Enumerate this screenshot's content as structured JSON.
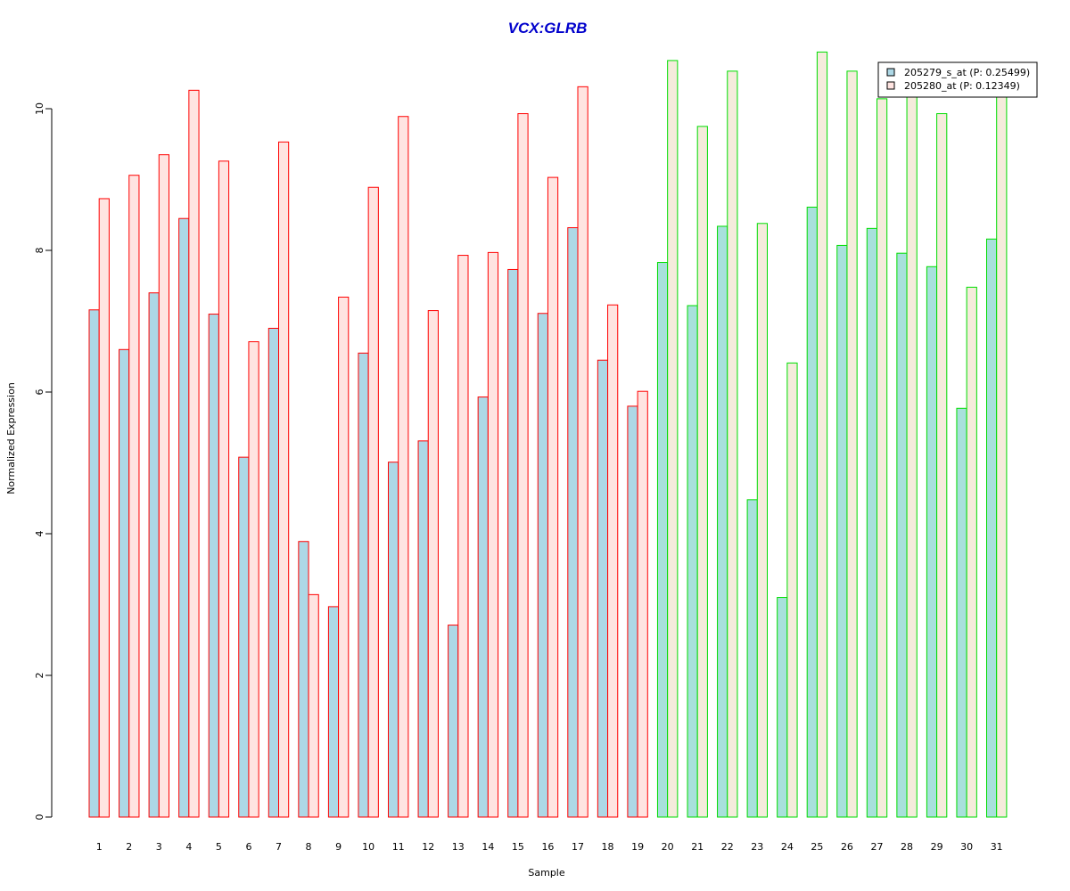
{
  "chart_data": {
    "type": "bar",
    "title": "VCX:GLRB",
    "title_color": "#0000CC",
    "xlabel": "Sample",
    "ylabel": "Normalized Expression",
    "ylim": [
      0,
      10.8
    ],
    "yticks": [
      0,
      2,
      4,
      6,
      8,
      10
    ],
    "grid": false,
    "legend_position": "top-right",
    "categories": [
      "1",
      "2",
      "3",
      "4",
      "5",
      "6",
      "7",
      "8",
      "9",
      "10",
      "11",
      "12",
      "13",
      "14",
      "15",
      "16",
      "17",
      "18",
      "19",
      "20",
      "21",
      "22",
      "23",
      "24",
      "25",
      "26",
      "27",
      "28",
      "29",
      "30",
      "31"
    ],
    "series": [
      {
        "name": "205279_s_at (P: 0.25499)",
        "values": [
          7.16,
          6.6,
          7.4,
          8.45,
          7.1,
          5.08,
          6.9,
          3.89,
          2.97,
          6.55,
          5.01,
          5.31,
          2.71,
          5.93,
          7.73,
          7.11,
          8.32,
          6.45,
          5.8,
          7.83,
          7.22,
          8.34,
          4.48,
          3.1,
          8.61,
          8.07,
          8.31,
          7.96,
          7.77,
          5.77,
          8.16
        ],
        "fill_group_a": "#ADD8E6",
        "fill_group_b": "#A8E0DC"
      },
      {
        "name": "205280_at (P: 0.12349)",
        "values": [
          8.73,
          9.06,
          9.35,
          10.26,
          9.26,
          6.71,
          9.53,
          3.14,
          7.34,
          8.89,
          9.89,
          7.15,
          7.93,
          7.97,
          9.93,
          9.03,
          10.31,
          7.23,
          6.01,
          10.68,
          9.75,
          10.53,
          8.38,
          6.41,
          10.8,
          10.53,
          10.14,
          10.2,
          9.93,
          7.48,
          10.2
        ],
        "fill_group_a": "#FFE4E1",
        "fill_group_b": "#F5EBDC"
      }
    ],
    "groups": [
      {
        "samples": [
          1,
          19
        ],
        "border_color": "#FF0000"
      },
      {
        "samples": [
          20,
          31
        ],
        "border_color": "#00DD00"
      }
    ],
    "legend_fills": [
      "#ADD8E6",
      "#FFE4E1"
    ]
  }
}
